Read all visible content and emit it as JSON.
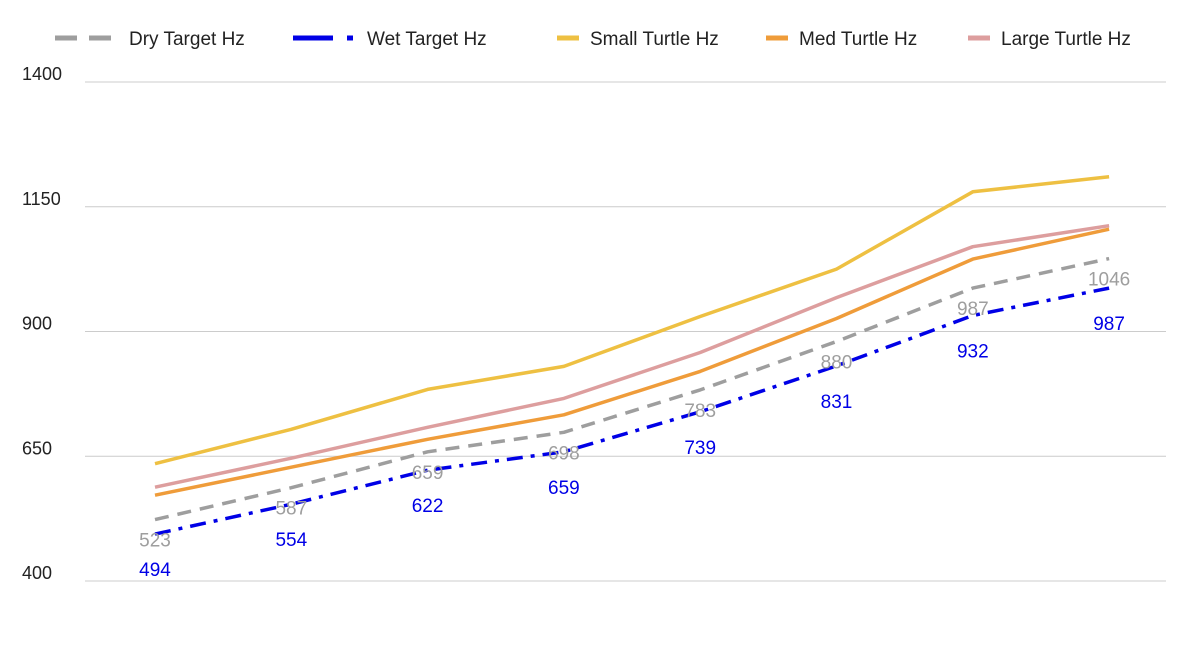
{
  "chart_data": {
    "type": "line",
    "x": [
      1,
      2,
      3,
      4,
      5,
      6,
      7,
      8
    ],
    "ylim": [
      400,
      1400
    ],
    "yticks": [
      400,
      650,
      900,
      1150,
      1400
    ],
    "grid": true,
    "legend_position": "top",
    "series": [
      {
        "name": "Dry Target Hz",
        "color": "#9e9e9e",
        "style": "dashed",
        "values": [
          523,
          587,
          659,
          698,
          783,
          880,
          987,
          1046
        ],
        "data_labels": [
          "523",
          "587",
          "659",
          "698",
          "783",
          "880",
          "987",
          "1046"
        ]
      },
      {
        "name": "Wet Target Hz",
        "color": "#0000e6",
        "style": "dashdot",
        "values": [
          494,
          554,
          622,
          659,
          739,
          831,
          932,
          987
        ],
        "data_labels": [
          "494",
          "554",
          "622",
          "659",
          "739",
          "831",
          "932",
          "987"
        ]
      },
      {
        "name": "Small Turtle Hz",
        "color": "#eec042",
        "style": "solid",
        "values": [
          635,
          704,
          784,
          830,
          930,
          1025,
          1180,
          1210
        ]
      },
      {
        "name": "Med Turtle Hz",
        "color": "#ef9c3a",
        "style": "solid",
        "values": [
          572,
          628,
          684,
          733,
          820,
          926,
          1045,
          1105
        ]
      },
      {
        "name": "Large Turtle Hz",
        "color": "#dd9e9e",
        "style": "solid",
        "values": [
          588,
          646,
          708,
          766,
          858,
          968,
          1070,
          1112
        ]
      }
    ]
  }
}
